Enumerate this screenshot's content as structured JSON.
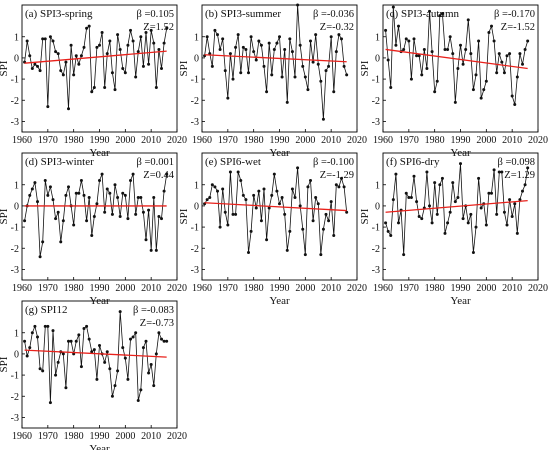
{
  "figure": {
    "x_title": "Year",
    "y_title": "SPI"
  },
  "colors": {
    "series": "#111111",
    "trend": "#e8211b"
  },
  "axes": {
    "x_ticks": [
      1960,
      1970,
      1980,
      1990,
      2000,
      2010,
      2020
    ],
    "y_ticks": [
      1,
      0,
      -1,
      -2,
      -3
    ],
    "xlim": [
      1960,
      2020
    ],
    "ylim": [
      -3.5,
      2.5
    ]
  },
  "chart_data": [
    {
      "type": "line",
      "label": "(a) SPI3-spring",
      "beta": "β =0.105",
      "z": "Z=1.52",
      "x_start": 1961,
      "trend": [
        -0.25,
        0.32
      ],
      "values": [
        -0.2,
        0.8,
        0.1,
        -0.5,
        -0.3,
        -0.4,
        -0.6,
        0.9,
        0.9,
        -2.3,
        1.0,
        0.8,
        0.3,
        0.2,
        -0.6,
        -0.8,
        -0.2,
        -2.4,
        0.6,
        -0.8,
        0.1,
        -0.3,
        0.1,
        0.5,
        1.4,
        1.5,
        -1.6,
        -1.4,
        0.5,
        0.6,
        1.2,
        -1.4,
        0.2,
        0.8,
        -0.7,
        -1.5,
        1.1,
        0.4,
        -0.5,
        -0.7,
        0.6,
        1.3,
        0.8,
        -0.9,
        0.3,
        1.0,
        -0.4,
        1.2,
        -0.3,
        1.3,
        0.7,
        -1.4,
        0.4,
        -0.5,
        0.7,
        1.4
      ]
    },
    {
      "type": "line",
      "label": "(b) SPI3-summer",
      "beta": "β =-0.036",
      "z": "Z=-0.32",
      "x_start": 1961,
      "trend": [
        0.15,
        -0.18
      ],
      "values": [
        0.1,
        1.0,
        0.2,
        -0.4,
        1.3,
        1.1,
        0.4,
        0.9,
        -0.6,
        -1.9,
        0.2,
        -1.0,
        0.5,
        1.1,
        -0.7,
        0.5,
        0.4,
        -0.7,
        1.0,
        0.3,
        -0.1,
        0.8,
        0.6,
        -0.4,
        -1.6,
        0.7,
        -0.8,
        0.4,
        0.7,
        1.0,
        -0.9,
        0.4,
        -2.1,
        0.9,
        0.3,
        -0.9,
        2.5,
        0.6,
        -0.4,
        -0.9,
        -1.5,
        0.8,
        -0.2,
        1.1,
        -0.3,
        -1.1,
        -2.9,
        -0.6,
        -0.4,
        1.0,
        -1.6,
        0.3,
        1.1,
        0.9,
        -0.4,
        -0.8
      ]
    },
    {
      "type": "line",
      "label": "(c) SPI3-autumn",
      "beta": "β =-0.170",
      "z": "Z=-1.52",
      "x_start": 1961,
      "trend": [
        0.4,
        -0.5
      ],
      "values": [
        1.3,
        -0.1,
        -1.4,
        2.4,
        0.6,
        1.5,
        0.3,
        0.4,
        0.9,
        0.8,
        -1.0,
        0.9,
        0.1,
        0.1,
        -0.8,
        0.4,
        -0.5,
        2.2,
        0.3,
        -1.6,
        -1.1,
        2.0,
        2.1,
        0.4,
        0.4,
        1.0,
        0.2,
        -2.1,
        -0.5,
        0.6,
        -0.3,
        0.4,
        1.8,
        0.2,
        -1.5,
        -0.8,
        0.8,
        -1.9,
        -1.5,
        -1.1,
        1.2,
        1.5,
        0.8,
        -0.7,
        0.2,
        -0.2,
        -0.7,
        0.1,
        0.2,
        -1.8,
        -2.2,
        -0.9,
        0.2,
        -0.3,
        0.4,
        0.8
      ]
    },
    {
      "type": "line",
      "label": "(d) SPI3-winter",
      "beta": "β =0.001",
      "z": "Z=0.44",
      "x_start": 1961,
      "trend": [
        0.0,
        0.0
      ],
      "values": [
        -0.7,
        0.0,
        0.5,
        0.8,
        1.1,
        0.2,
        -2.4,
        -1.7,
        1.2,
        0.5,
        0.9,
        0.3,
        -0.6,
        -0.3,
        -1.7,
        -0.7,
        0.5,
        0.9,
        0.0,
        -0.9,
        0.6,
        0.6,
        1.2,
        0.5,
        -0.7,
        0.4,
        -1.4,
        -0.5,
        0.1,
        1.2,
        1.5,
        -0.3,
        0.8,
        0.6,
        -0.4,
        1.0,
        0.4,
        -0.5,
        0.6,
        0.5,
        -0.6,
        1.2,
        1.5,
        -0.4,
        0.4,
        0.4,
        -0.3,
        -1.6,
        -0.2,
        -2.1,
        0.4,
        -2.1,
        -0.5,
        -0.6,
        0.7,
        1.5
      ]
    },
    {
      "type": "line",
      "label": "(e) SPI6-wet",
      "beta": "β =-0.100",
      "z": "Z=-1.29",
      "x_start": 1961,
      "trend": [
        0.15,
        -0.22
      ],
      "values": [
        0.1,
        0.3,
        0.4,
        1.0,
        0.9,
        0.7,
        -1.0,
        0.8,
        -0.3,
        -0.9,
        1.6,
        -0.4,
        -0.4,
        1.6,
        1.2,
        0.5,
        0.3,
        -2.2,
        -1.2,
        0.5,
        -0.1,
        0.7,
        -0.7,
        0.8,
        -1.6,
        -0.1,
        0.5,
        1.5,
        0.7,
        0.1,
        0.4,
        -0.4,
        -2.1,
        -1.2,
        0.8,
        0.4,
        1.8,
        0.0,
        -1.1,
        -2.3,
        0.9,
        1.2,
        -0.7,
        0.4,
        0.1,
        -2.3,
        -1.1,
        -0.4,
        -0.7,
        0.2,
        -1.4,
        1.0,
        0.9,
        1.3,
        0.9,
        -0.3
      ]
    },
    {
      "type": "line",
      "label": "(f) SPI6-dry",
      "beta": "β =0.098",
      "z": "Z=1.29",
      "x_start": 1961,
      "trend": [
        -0.3,
        0.25
      ],
      "values": [
        -0.8,
        -1.2,
        -1.4,
        0.3,
        1.5,
        -0.8,
        -0.2,
        -2.3,
        0.6,
        0.4,
        0.4,
        1.4,
        0.2,
        -0.5,
        -0.6,
        -0.1,
        1.6,
        0.0,
        -0.8,
        1.1,
        -0.4,
        1.0,
        1.3,
        -1.3,
        -0.8,
        -0.3,
        1.1,
        0.2,
        0.4,
        2.0,
        -0.6,
        0.0,
        -0.8,
        -0.4,
        -2.2,
        -1.0,
        1.3,
        -0.1,
        0.1,
        -0.9,
        0.6,
        0.6,
        1.7,
        -0.4,
        1.6,
        1.6,
        -0.3,
        -0.9,
        0.3,
        -0.5,
        0.1,
        -1.3,
        0.3,
        0.7,
        1.0,
        1.8
      ]
    },
    {
      "type": "line",
      "label": "(g) SPI12",
      "beta": "β =-0.083",
      "z": "Z=-0.73",
      "x_start": 1961,
      "trend": [
        0.18,
        -0.15
      ],
      "values": [
        0.6,
        -0.1,
        0.3,
        1.0,
        1.3,
        0.8,
        -0.7,
        -0.8,
        1.3,
        1.3,
        -2.3,
        1.1,
        -1.0,
        -0.4,
        0.1,
        0.0,
        -1.6,
        0.6,
        0.6,
        0.0,
        0.6,
        0.9,
        -0.6,
        1.2,
        1.3,
        0.7,
        0.1,
        0.2,
        -1.2,
        0.4,
        0.0,
        -0.4,
        0.1,
        -0.7,
        -2.0,
        -1.5,
        -0.8,
        2.0,
        0.3,
        -0.2,
        -1.2,
        0.7,
        0.8,
        1.0,
        -2.2,
        -1.7,
        0.3,
        0.6,
        -0.9,
        -0.5,
        -1.5,
        0.0,
        1.0,
        0.7,
        0.6,
        0.6
      ]
    }
  ]
}
